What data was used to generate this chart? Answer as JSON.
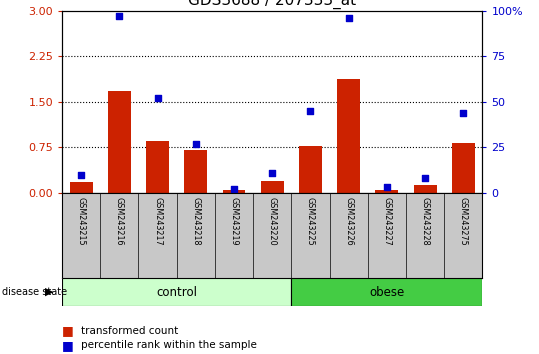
{
  "title": "GDS3688 / 207333_at",
  "samples": [
    "GSM243215",
    "GSM243216",
    "GSM243217",
    "GSM243218",
    "GSM243219",
    "GSM243220",
    "GSM243225",
    "GSM243226",
    "GSM243227",
    "GSM243228",
    "GSM243275"
  ],
  "transformed_count": [
    0.18,
    1.67,
    0.85,
    0.7,
    0.04,
    0.2,
    0.78,
    1.87,
    0.05,
    0.13,
    0.82
  ],
  "percentile_rank": [
    10,
    97,
    52,
    27,
    2,
    11,
    45,
    96,
    3,
    8,
    44
  ],
  "n_control": 6,
  "n_obese": 5,
  "ylim_left": [
    0,
    3
  ],
  "ylim_right": [
    0,
    100
  ],
  "yticks_left": [
    0,
    0.75,
    1.5,
    2.25,
    3
  ],
  "yticks_right": [
    0,
    25,
    50,
    75,
    100
  ],
  "bar_color": "#cc2200",
  "scatter_color": "#0000cc",
  "control_color": "#ccffcc",
  "obese_color": "#44cc44",
  "title_fontsize": 11,
  "tick_fontsize": 8
}
